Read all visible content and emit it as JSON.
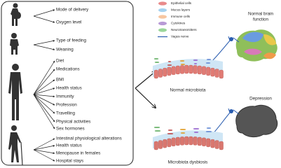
{
  "groups": [
    {
      "items": [
        "Mode of delivery",
        "Oxygen level"
      ]
    },
    {
      "items": [
        "Type of feeding",
        "Weaning"
      ]
    },
    {
      "items": [
        "Diet",
        "Medications",
        "BMI",
        "Health status",
        "Immunity",
        "Profession",
        "Travelling",
        "Physical activities",
        "Sex hormones"
      ]
    },
    {
      "items": [
        "Intestinal physiological alterations",
        "Health status",
        "Menopause in females",
        "Hospital stays"
      ]
    }
  ],
  "legend": [
    "Epithelial cells",
    "Mucus layers",
    "Immune cells",
    "Cytokines",
    "Neurotransmitters",
    "Vagus nerve"
  ],
  "normal": {
    "gut_label": "Normal microbiota",
    "brain_label": [
      "Normal brain",
      "function"
    ]
  },
  "dysbiosis": {
    "gut_label": "Microbiota dysbiosis",
    "brain_label": "Depression"
  }
}
